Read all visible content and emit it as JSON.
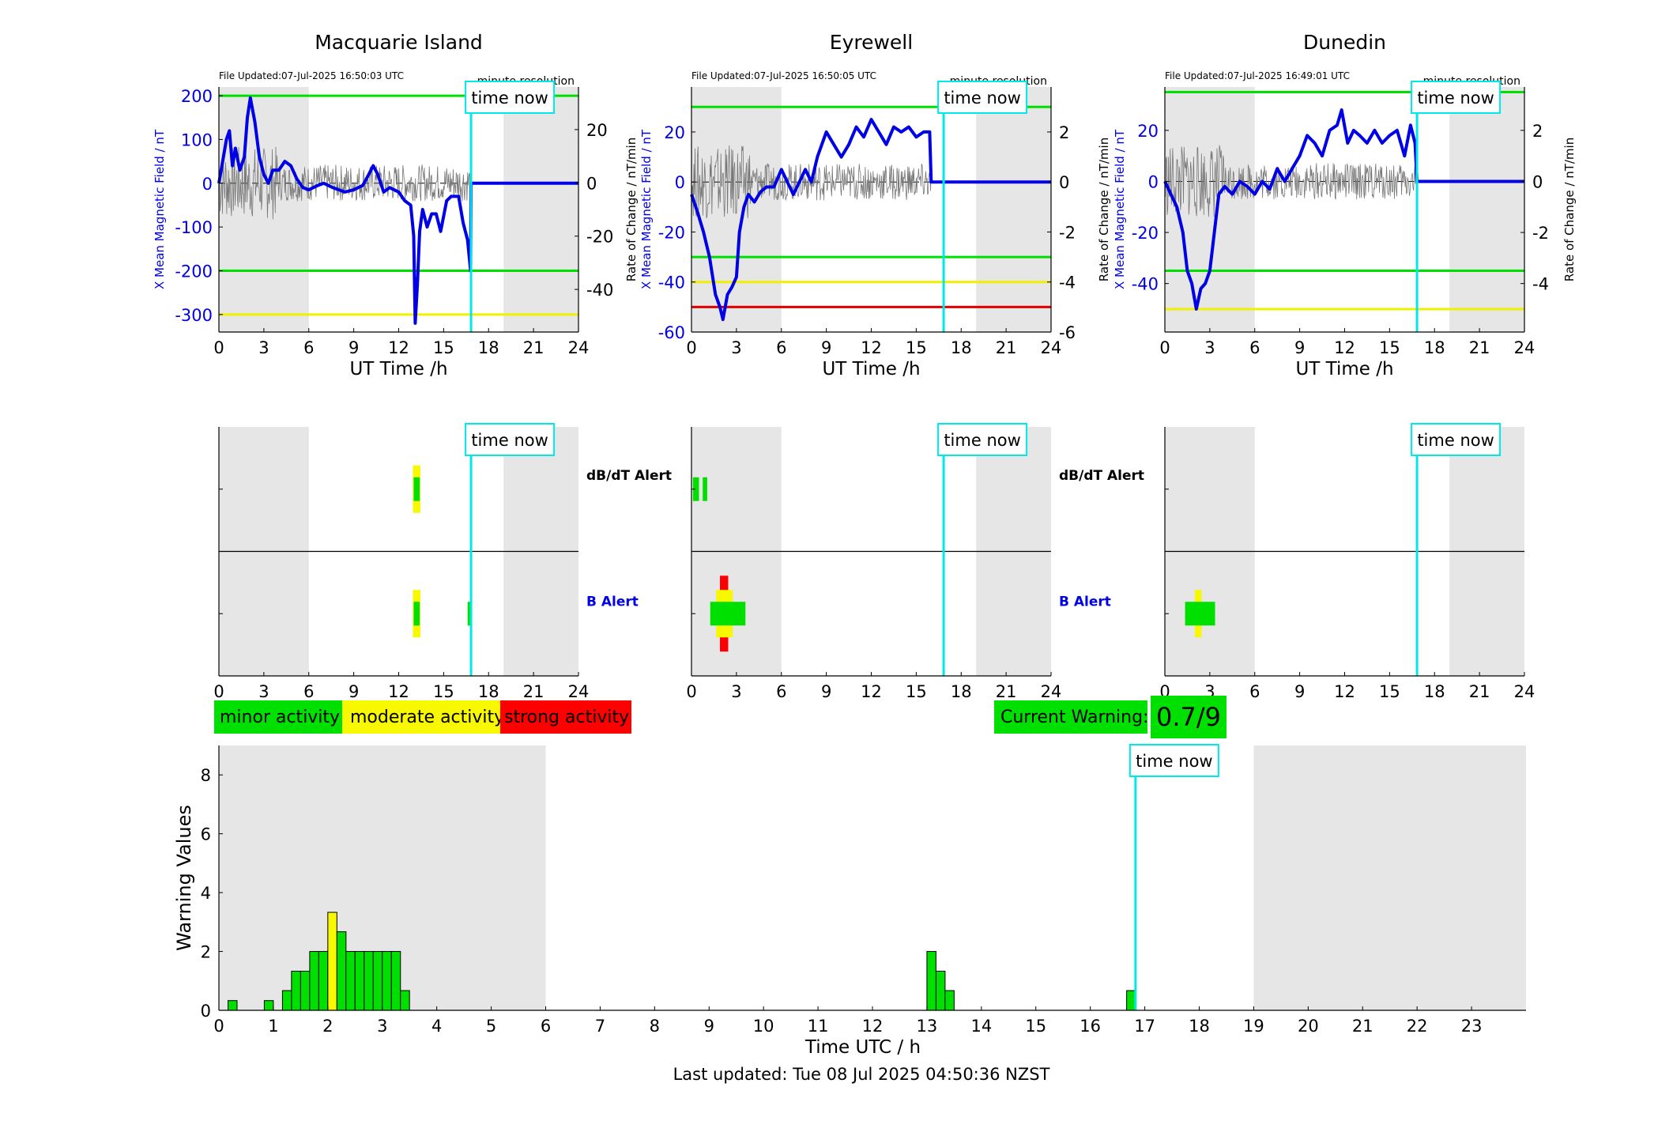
{
  "stations": [
    {
      "title": "Macquarie Island",
      "file_updated": "File Updated:07-Jul-2025 16:50:03 UTC",
      "resolution": "minute resolution",
      "time_now_label": "time now",
      "now_hour": 16.83,
      "night_start": 6,
      "night_end": 19,
      "chart_data": {
        "type": "line",
        "xlabel": "UT Time /h",
        "ylabel_left": "X Mean Magnetic Field / nT",
        "ylabel_right": "Rate of Change / nT/min",
        "xlim": [
          0,
          24
        ],
        "xticks": [
          0,
          3,
          6,
          9,
          12,
          15,
          18,
          21,
          24
        ],
        "ylim": [
          -340,
          220
        ],
        "yticks": [
          -300,
          -200,
          -100,
          0,
          100,
          200
        ],
        "y2lim": [
          -56,
          36
        ],
        "y2ticks": [
          -40,
          -20,
          0,
          20
        ],
        "thresholds": [
          {
            "value": 200,
            "color": "#00e000"
          },
          {
            "value": -200,
            "color": "#00e000"
          },
          {
            "value": -300,
            "color": "#f0f000"
          }
        ],
        "series": [
          {
            "color": "#0000e6",
            "points": [
              [
                0,
                0
              ],
              [
                0.3,
                60
              ],
              [
                0.5,
                100
              ],
              [
                0.7,
                120
              ],
              [
                0.9,
                40
              ],
              [
                1.1,
                80
              ],
              [
                1.4,
                30
              ],
              [
                1.7,
                60
              ],
              [
                1.9,
                150
              ],
              [
                2.1,
                195
              ],
              [
                2.4,
                140
              ],
              [
                2.7,
                60
              ],
              [
                3.0,
                20
              ],
              [
                3.3,
                0
              ],
              [
                3.6,
                30
              ],
              [
                4,
                30
              ],
              [
                4.4,
                50
              ],
              [
                4.8,
                40
              ],
              [
                5.2,
                10
              ],
              [
                5.6,
                -10
              ],
              [
                6,
                -15
              ],
              [
                6.6,
                -5
              ],
              [
                7,
                0
              ],
              [
                7.6,
                -10
              ],
              [
                8.4,
                -20
              ],
              [
                9,
                -15
              ],
              [
                9.6,
                -5
              ],
              [
                10,
                20
              ],
              [
                10.3,
                40
              ],
              [
                10.6,
                20
              ],
              [
                11,
                -20
              ],
              [
                11.4,
                -10
              ],
              [
                12,
                -20
              ],
              [
                12.4,
                -40
              ],
              [
                12.8,
                -50
              ],
              [
                13.0,
                -120
              ],
              [
                13.1,
                -320
              ],
              [
                13.25,
                -230
              ],
              [
                13.4,
                -110
              ],
              [
                13.6,
                -60
              ],
              [
                13.9,
                -100
              ],
              [
                14.2,
                -70
              ],
              [
                14.5,
                -70
              ],
              [
                14.8,
                -110
              ],
              [
                15.2,
                -40
              ],
              [
                15.5,
                -30
              ],
              [
                16,
                -30
              ],
              [
                16.3,
                -90
              ],
              [
                16.6,
                -130
              ],
              [
                16.8,
                -200
              ],
              [
                16.83,
                0
              ],
              [
                24,
                0
              ]
            ]
          }
        ]
      },
      "alerts": {
        "dbdt_label": "dB/dT Alert",
        "b_label": "B Alert",
        "xticks": [
          0,
          3,
          6,
          9,
          12,
          15,
          18,
          21,
          24
        ]
      }
    },
    {
      "title": "Eyrewell",
      "file_updated": "File Updated:07-Jul-2025 16:50:05 UTC",
      "resolution": "minute resolution",
      "time_now_label": "time now",
      "now_hour": 16.83,
      "night_start": 6,
      "night_end": 19,
      "chart_data": {
        "type": "line",
        "xlabel": "UT Time /h",
        "ylabel_left": "X Mean Magnetic Field / nT",
        "ylabel_right": "Rate of Change / nT/min",
        "xlim": [
          0,
          24
        ],
        "xticks": [
          0,
          3,
          6,
          9,
          12,
          15,
          18,
          21,
          24
        ],
        "ylim": [
          -60,
          38
        ],
        "yticks": [
          -60,
          -40,
          -20,
          0,
          20
        ],
        "y2lim": [
          -6,
          3.8
        ],
        "y2ticks": [
          -6,
          -4,
          -2,
          0,
          2
        ],
        "thresholds": [
          {
            "value": 30,
            "color": "#00e000"
          },
          {
            "value": -30,
            "color": "#00e000"
          },
          {
            "value": -40,
            "color": "#f0f000"
          },
          {
            "value": -50,
            "color": "#e00000"
          }
        ],
        "series": [
          {
            "color": "#0000e6",
            "points": [
              [
                0,
                -5
              ],
              [
                0.4,
                -12
              ],
              [
                0.8,
                -20
              ],
              [
                1.2,
                -30
              ],
              [
                1.6,
                -45
              ],
              [
                1.9,
                -50
              ],
              [
                2.1,
                -55
              ],
              [
                2.4,
                -45
              ],
              [
                2.7,
                -42
              ],
              [
                3.0,
                -38
              ],
              [
                3.2,
                -20
              ],
              [
                3.5,
                -10
              ],
              [
                3.8,
                -5
              ],
              [
                4.2,
                -8
              ],
              [
                4.6,
                -4
              ],
              [
                5,
                -2
              ],
              [
                5.5,
                -2
              ],
              [
                6,
                5
              ],
              [
                6.4,
                0
              ],
              [
                6.8,
                -5
              ],
              [
                7.2,
                0
              ],
              [
                7.6,
                5
              ],
              [
                8,
                0
              ],
              [
                8.4,
                10
              ],
              [
                9,
                20
              ],
              [
                9.5,
                15
              ],
              [
                10,
                10
              ],
              [
                10.5,
                15
              ],
              [
                11,
                22
              ],
              [
                11.5,
                18
              ],
              [
                12,
                25
              ],
              [
                12.5,
                20
              ],
              [
                13,
                15
              ],
              [
                13.5,
                22
              ],
              [
                14,
                20
              ],
              [
                14.5,
                22
              ],
              [
                15,
                18
              ],
              [
                15.5,
                20
              ],
              [
                15.9,
                20
              ],
              [
                16.0,
                0
              ],
              [
                24,
                0
              ]
            ]
          }
        ]
      },
      "alerts": {
        "dbdt_label": "dB/dT Alert",
        "b_label": "B Alert",
        "xticks": [
          0,
          3,
          6,
          9,
          12,
          15,
          18,
          21,
          24
        ]
      }
    },
    {
      "title": "Dunedin",
      "file_updated": "File Updated:07-Jul-2025 16:49:01 UTC",
      "resolution": "minute resolution",
      "time_now_label": "time now",
      "now_hour": 16.83,
      "night_start": 6,
      "night_end": 19,
      "chart_data": {
        "type": "line",
        "xlabel": "UT Time /h",
        "ylabel_left": "X Mean Magnetic Field / nT",
        "ylabel_right": "Rate of Change / nT/min",
        "xlim": [
          0,
          24
        ],
        "xticks": [
          0,
          3,
          6,
          9,
          12,
          15,
          18,
          21,
          24
        ],
        "ylim": [
          -59,
          37
        ],
        "yticks": [
          -40,
          -20,
          0,
          20
        ],
        "y2lim": [
          -5.9,
          3.7
        ],
        "y2ticks": [
          -4,
          -2,
          0,
          2
        ],
        "thresholds": [
          {
            "value": 35,
            "color": "#00e000"
          },
          {
            "value": -35,
            "color": "#00e000"
          },
          {
            "value": -50,
            "color": "#f0f000"
          }
        ],
        "series": [
          {
            "color": "#0000e6",
            "points": [
              [
                0,
                0
              ],
              [
                0.4,
                -5
              ],
              [
                0.8,
                -10
              ],
              [
                1.2,
                -20
              ],
              [
                1.5,
                -35
              ],
              [
                1.8,
                -40
              ],
              [
                2.1,
                -50
              ],
              [
                2.4,
                -42
              ],
              [
                2.7,
                -40
              ],
              [
                3.0,
                -35
              ],
              [
                3.3,
                -20
              ],
              [
                3.6,
                -5
              ],
              [
                4,
                -2
              ],
              [
                4.5,
                -5
              ],
              [
                5,
                0
              ],
              [
                5.5,
                -2
              ],
              [
                6,
                -5
              ],
              [
                6.5,
                0
              ],
              [
                7,
                -3
              ],
              [
                7.5,
                5
              ],
              [
                8,
                0
              ],
              [
                8.5,
                5
              ],
              [
                9,
                10
              ],
              [
                9.5,
                18
              ],
              [
                10,
                15
              ],
              [
                10.5,
                10
              ],
              [
                11,
                20
              ],
              [
                11.5,
                22
              ],
              [
                11.8,
                28
              ],
              [
                12.2,
                15
              ],
              [
                12.6,
                20
              ],
              [
                13,
                18
              ],
              [
                13.5,
                15
              ],
              [
                14,
                20
              ],
              [
                14.5,
                15
              ],
              [
                15,
                18
              ],
              [
                15.5,
                20
              ],
              [
                16,
                10
              ],
              [
                16.4,
                22
              ],
              [
                16.7,
                15
              ],
              [
                16.83,
                0
              ],
              [
                24,
                0
              ]
            ]
          }
        ]
      },
      "alerts": {
        "dbdt_label": "dB/dT Alert",
        "b_label": "B Alert",
        "xticks": [
          0,
          3,
          6,
          9,
          12,
          15,
          18,
          21,
          24
        ]
      }
    }
  ],
  "alert_blocks": [
    [
      {
        "row": "dbdt",
        "start": 12.95,
        "end": 13.45,
        "level": "moderate"
      },
      {
        "row": "dbdt",
        "start": 13.0,
        "end": 13.4,
        "level": "minor"
      },
      {
        "row": "b",
        "start": 12.95,
        "end": 13.45,
        "level": "moderate"
      },
      {
        "row": "b",
        "start": 13.0,
        "end": 13.4,
        "level": "minor"
      },
      {
        "row": "b",
        "start": 16.6,
        "end": 16.9,
        "level": "minor"
      }
    ],
    [
      {
        "row": "dbdt",
        "start": 0.1,
        "end": 0.5,
        "level": "minor"
      },
      {
        "row": "dbdt",
        "start": 0.75,
        "end": 1.05,
        "level": "minor"
      },
      {
        "row": "b",
        "start": 1.9,
        "end": 2.45,
        "level": "strong"
      },
      {
        "row": "b",
        "start": 1.65,
        "end": 2.75,
        "level": "moderate"
      },
      {
        "row": "b",
        "start": 1.25,
        "end": 3.6,
        "level": "minor"
      }
    ],
    [
      {
        "row": "b",
        "start": 2.0,
        "end": 2.45,
        "level": "moderate"
      },
      {
        "row": "b",
        "start": 1.35,
        "end": 3.35,
        "level": "minor"
      }
    ]
  ],
  "legend": {
    "minor": "minor activity",
    "moderate": "moderate activity",
    "strong": "strong activity"
  },
  "colors": {
    "minor": "#00e000",
    "moderate": "#f8f800",
    "strong": "#ff0000",
    "now_line": "#00e8e8",
    "night_shade": "#e6e6e6",
    "field_line": "#0000e6"
  },
  "current_warning": {
    "label": "Current Warning:",
    "value": "0.7/9"
  },
  "warning_chart": {
    "chart_data": {
      "type": "bar",
      "xlabel": "Time UTC / h",
      "ylabel": "Warning Values",
      "xlim": [
        0,
        24
      ],
      "xticks": [
        0,
        1,
        2,
        3,
        4,
        5,
        6,
        7,
        8,
        9,
        10,
        11,
        12,
        13,
        14,
        15,
        16,
        17,
        18,
        19,
        20,
        21,
        22,
        23
      ],
      "ylim": [
        0,
        9
      ],
      "yticks": [
        0,
        2,
        4,
        6,
        8
      ],
      "bar_width": 0.1667,
      "bars": [
        {
          "x": 0.167,
          "value": 0.33,
          "level": "minor"
        },
        {
          "x": 0.833,
          "value": 0.33,
          "level": "minor"
        },
        {
          "x": 1.167,
          "value": 0.67,
          "level": "minor"
        },
        {
          "x": 1.333,
          "value": 1.33,
          "level": "minor"
        },
        {
          "x": 1.5,
          "value": 1.33,
          "level": "minor"
        },
        {
          "x": 1.667,
          "value": 2.0,
          "level": "minor"
        },
        {
          "x": 1.833,
          "value": 2.0,
          "level": "minor"
        },
        {
          "x": 2.0,
          "value": 3.33,
          "level": "moderate"
        },
        {
          "x": 2.167,
          "value": 2.67,
          "level": "minor"
        },
        {
          "x": 2.333,
          "value": 2.0,
          "level": "minor"
        },
        {
          "x": 2.5,
          "value": 2.0,
          "level": "minor"
        },
        {
          "x": 2.667,
          "value": 2.0,
          "level": "minor"
        },
        {
          "x": 2.833,
          "value": 2.0,
          "level": "minor"
        },
        {
          "x": 3.0,
          "value": 2.0,
          "level": "minor"
        },
        {
          "x": 3.167,
          "value": 2.0,
          "level": "minor"
        },
        {
          "x": 3.333,
          "value": 0.67,
          "level": "minor"
        },
        {
          "x": 13.0,
          "value": 2.0,
          "level": "minor"
        },
        {
          "x": 13.167,
          "value": 1.33,
          "level": "minor"
        },
        {
          "x": 13.333,
          "value": 0.67,
          "level": "minor"
        },
        {
          "x": 16.667,
          "value": 0.67,
          "level": "minor"
        }
      ],
      "night_start": 0,
      "night_end": 6,
      "night2_start": 19,
      "night2_end": 24,
      "now_hour": 16.83,
      "time_now_label": "time now"
    }
  },
  "footer": "Last updated: Tue 08 Jul 2025 04:50:36 NZST"
}
